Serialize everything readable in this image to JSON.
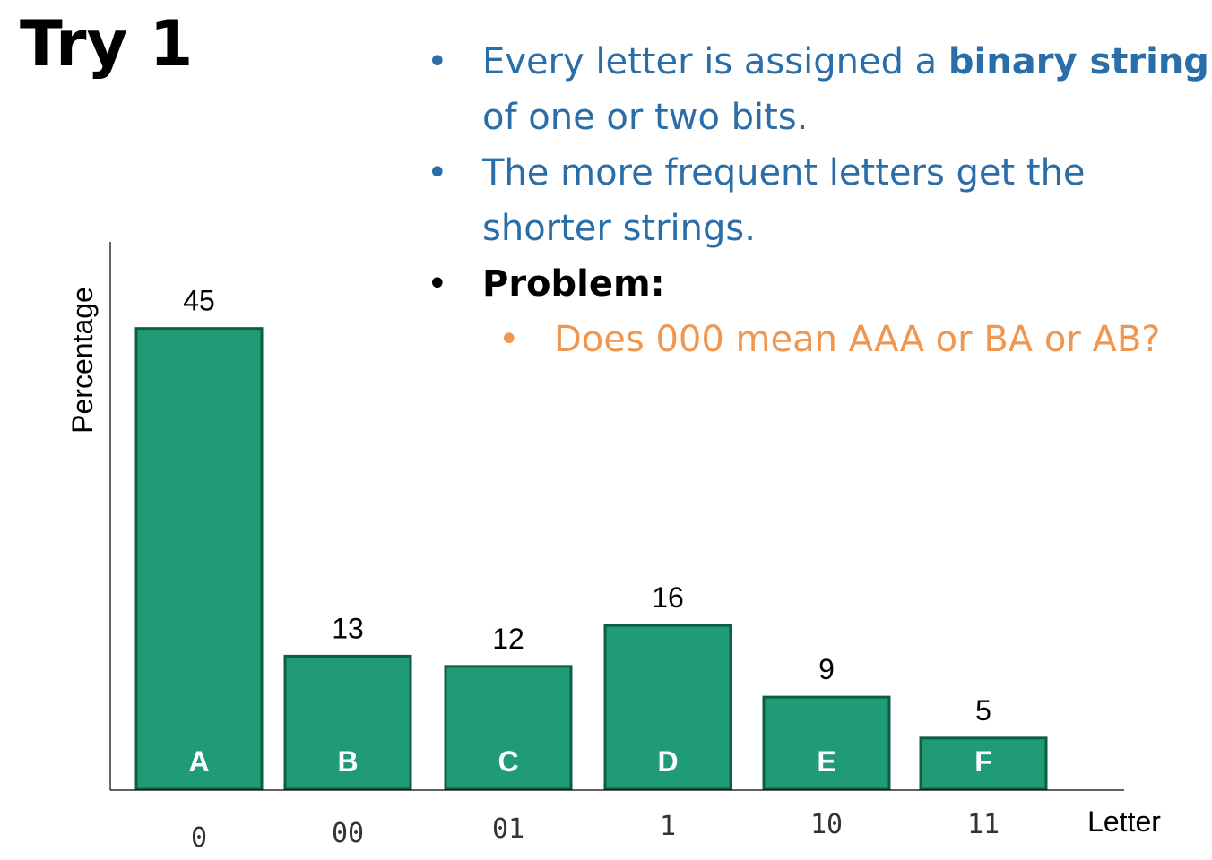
{
  "slide": {
    "title": "Try 1",
    "bullets": [
      {
        "parts": [
          {
            "text": "Every letter is assigned a "
          },
          {
            "text": "binary string",
            "bold": true
          }
        ],
        "continuation": "of one or two bits.",
        "color": "#2a6ea9"
      },
      {
        "parts": [
          {
            "text": "The more frequent letters get the"
          }
        ],
        "continuation": "shorter strings.",
        "color": "#2a6ea9"
      },
      {
        "parts": [
          {
            "text": "Problem:",
            "bold": true
          }
        ],
        "continuation": "",
        "color": "#000000"
      },
      {
        "parts": [
          {
            "text": "Does 000 mean AAA or BA or AB?"
          }
        ],
        "continuation": "",
        "color": "#ef9751",
        "sub": true
      }
    ]
  },
  "chart_data": {
    "type": "bar",
    "categories": [
      "A",
      "B",
      "C",
      "D",
      "E",
      "F"
    ],
    "values": [
      45,
      13,
      12,
      16,
      9,
      5
    ],
    "codes": [
      "0",
      "00",
      "01",
      "1",
      "10",
      "11"
    ],
    "xlabel": "Letter",
    "ylabel": "Percentage",
    "ylim": [
      0,
      50
    ],
    "bar_color": "#1f9b78",
    "bar_border_color": "#0d5e43",
    "grid": false,
    "legend": "none"
  }
}
